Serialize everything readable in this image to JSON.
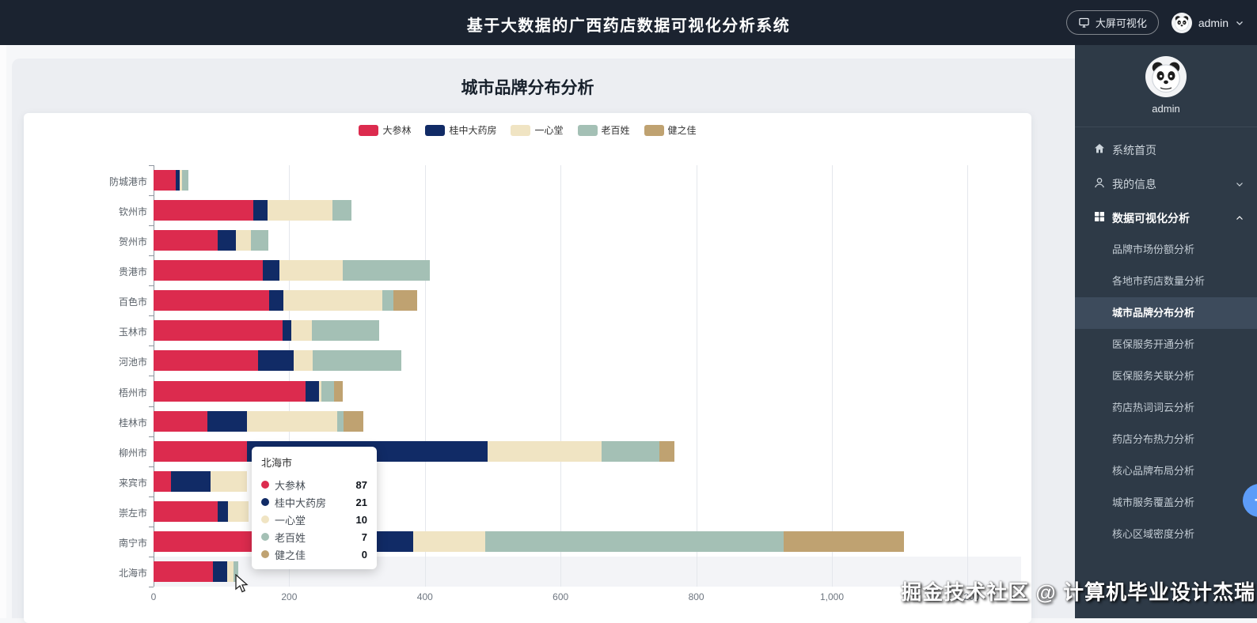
{
  "header": {
    "title": "基于大数据的广西药店数据可视化分析系统",
    "screen_button_label": "大屏可视化",
    "user_name": "admin"
  },
  "sidebar": {
    "user_name": "admin",
    "items": [
      {
        "label": "系统首页",
        "icon": "home-icon",
        "chevron": "",
        "bold": false
      },
      {
        "label": "我的信息",
        "icon": "user-icon",
        "chevron": "down",
        "bold": false
      },
      {
        "label": "数据可视化分析",
        "icon": "grid-icon",
        "chevron": "up",
        "bold": true
      }
    ],
    "submenu": [
      "品牌市场份额分析",
      "各地市药店数量分析",
      "城市品牌分布分析",
      "医保服务开通分析",
      "医保服务关联分析",
      "药店热词词云分析",
      "药店分布热力分析",
      "核心品牌布局分析",
      "城市服务覆盖分析",
      "核心区域密度分析"
    ],
    "active_submenu": "城市品牌分布分析"
  },
  "main": {
    "page_title": "城市品牌分布分析"
  },
  "chart_data": {
    "type": "bar",
    "orientation": "horizontal",
    "stacked": true,
    "title": "城市品牌分布分析",
    "categories": [
      "防城港市",
      "钦州市",
      "贺州市",
      "贵港市",
      "百色市",
      "玉林市",
      "河池市",
      "梧州市",
      "桂林市",
      "柳州市",
      "来宾市",
      "崇左市",
      "南宁市",
      "北海市"
    ],
    "series": [
      {
        "name": "大参林",
        "color": "#dc2b4e",
        "values": [
          33,
          147,
          95,
          161,
          170,
          190,
          154,
          224,
          79,
          138,
          26,
          95,
          210,
          87
        ]
      },
      {
        "name": "桂中大药房",
        "color": "#112b66",
        "values": [
          6,
          21,
          26,
          25,
          21,
          13,
          53,
          20,
          59,
          354,
          58,
          15,
          173,
          21
        ]
      },
      {
        "name": "一心堂",
        "color": "#f0e4c3",
        "values": [
          3,
          96,
          23,
          93,
          146,
          30,
          28,
          3,
          133,
          168,
          54,
          30,
          106,
          10
        ]
      },
      {
        "name": "老百姓",
        "color": "#a4c0b5",
        "values": [
          9,
          28,
          25,
          128,
          16,
          100,
          130,
          19,
          9,
          86,
          0,
          0,
          440,
          7
        ]
      },
      {
        "name": "健之佳",
        "color": "#bfa271",
        "values": [
          0,
          0,
          0,
          0,
          35,
          0,
          0,
          13,
          29,
          22,
          0,
          0,
          177,
          0
        ]
      }
    ],
    "xlim": [
      0,
      1280
    ],
    "xticks": [
      0,
      200,
      400,
      600,
      800,
      1000,
      1200
    ],
    "xtick_labels": [
      "0",
      "200",
      "400",
      "600",
      "800",
      "1,000",
      "1,200"
    ],
    "grid": true,
    "legend_position": "top",
    "highlighted_category": "北海市"
  },
  "tooltip": {
    "title": "北海市",
    "rows": [
      {
        "name": "大参林",
        "value": "87",
        "color": "#dc2b4e"
      },
      {
        "name": "桂中大药房",
        "value": "21",
        "color": "#112b66"
      },
      {
        "name": "一心堂",
        "value": "10",
        "color": "#f0e4c3"
      },
      {
        "name": "老百姓",
        "value": "7",
        "color": "#a4c0b5"
      },
      {
        "name": "健之佳",
        "value": "0",
        "color": "#bfa271"
      }
    ]
  },
  "watermark": "掘金技术社区 @ 计算机毕业设计杰瑞",
  "float_button_glyph": "+"
}
